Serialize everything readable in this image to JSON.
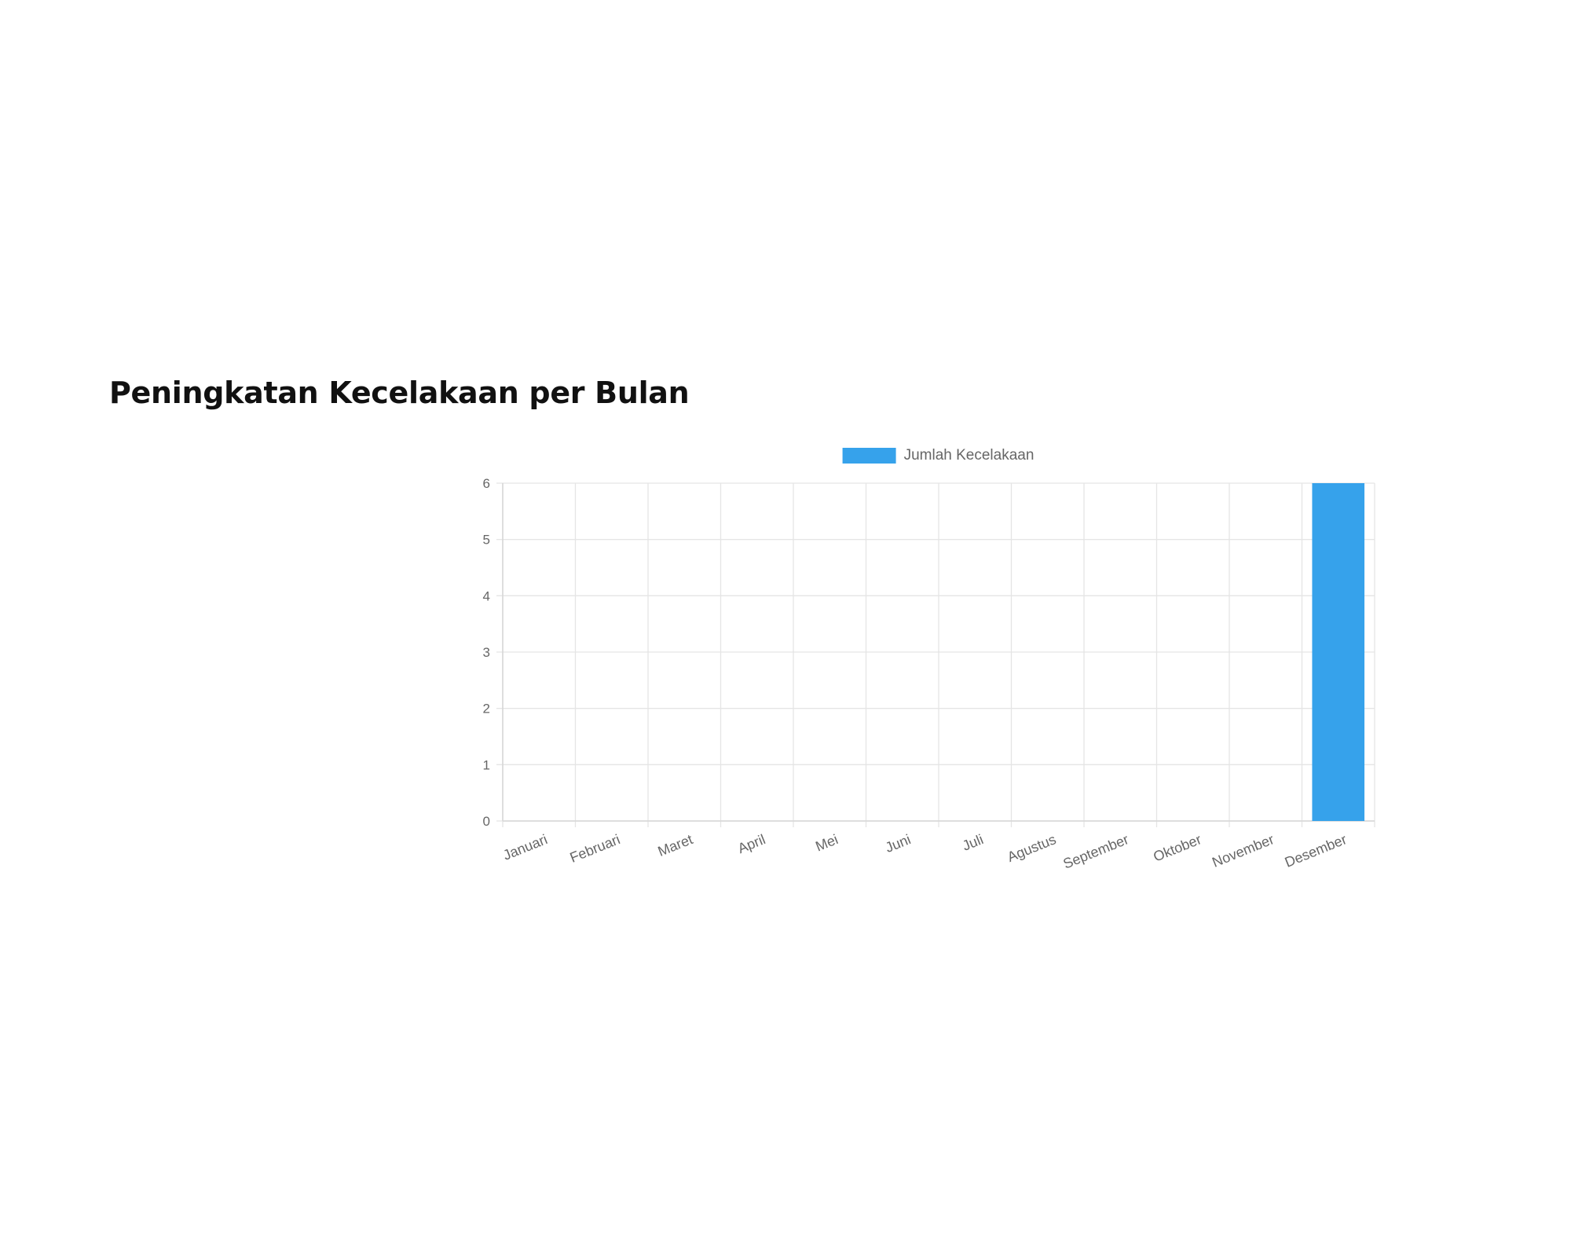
{
  "page": {
    "title": "Peningkatan Kecelakaan per Bulan"
  },
  "chart_data": {
    "type": "bar",
    "categories": [
      "Januari",
      "Februari",
      "Maret",
      "April",
      "Mei",
      "Juni",
      "Juli",
      "Agustus",
      "September",
      "Oktober",
      "November",
      "Desember"
    ],
    "series": [
      {
        "name": "Jumlah Kecelakaan",
        "values": [
          0,
          0,
          0,
          0,
          0,
          0,
          0,
          0,
          0,
          0,
          0,
          6
        ],
        "color": "#36a2eb"
      }
    ],
    "ylim": [
      0,
      6
    ],
    "yticks": [
      "0",
      "1",
      "2",
      "3",
      "4",
      "5",
      "6"
    ],
    "grid": true,
    "legend": "top-center",
    "title": "",
    "xlabel": "",
    "ylabel": ""
  }
}
